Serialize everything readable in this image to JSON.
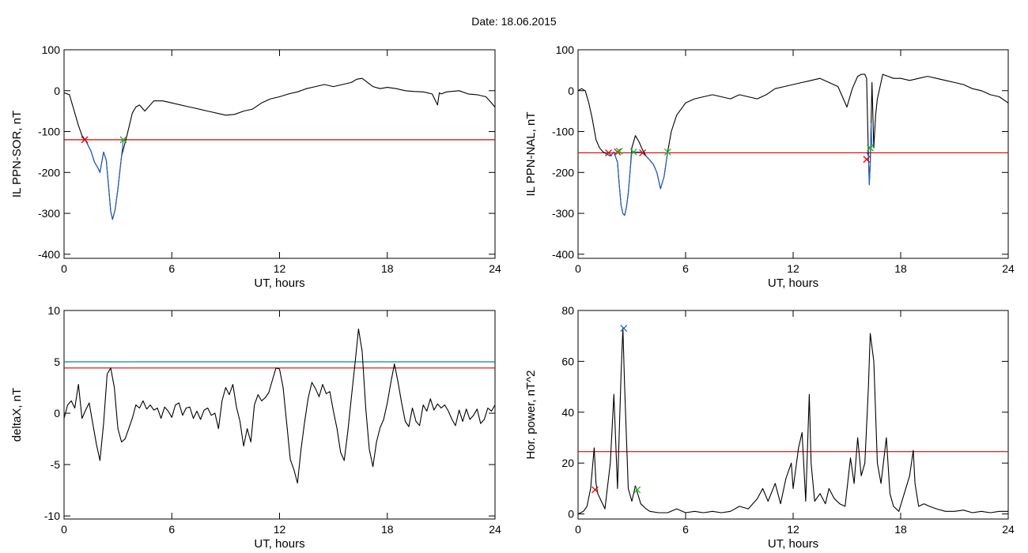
{
  "title": "Date:  18.06.2015",
  "chart_data": [
    {
      "id": "panel-sor",
      "type": "line",
      "xlabel": "UT, hours",
      "ylabel": "IL PPN-SOR, nT",
      "xlim": [
        0,
        24
      ],
      "ylim": [
        -410,
        100
      ],
      "xticks": [
        0,
        6,
        12,
        18,
        24
      ],
      "yticks": [
        -400,
        -300,
        -200,
        -100,
        0,
        100
      ],
      "series": [
        {
          "color": "#000000",
          "x": [
            0.0,
            0.3,
            0.5,
            0.8,
            1.0,
            1.2,
            1.5,
            1.7,
            1.9,
            2.0,
            2.1,
            2.2,
            2.35,
            2.5,
            2.6,
            2.7,
            2.85,
            3.0,
            3.2,
            3.5,
            3.8,
            4.0,
            4.2,
            4.5,
            5.0,
            5.5,
            6.0,
            7.0,
            8.0,
            9.0,
            9.5,
            10.0,
            10.5,
            11.0,
            11.5,
            12.0,
            12.5,
            13.0,
            13.5,
            14.0,
            14.5,
            15.0,
            15.5,
            16.0,
            16.3,
            16.6,
            16.9,
            17.2,
            17.6,
            18.0,
            18.5,
            19.0,
            19.5,
            20.0,
            20.5,
            20.8,
            20.9,
            21.0,
            21.3,
            22.0,
            22.5,
            23.0,
            23.5,
            24.0
          ],
          "y": [
            -5,
            -10,
            -40,
            -85,
            -110,
            -122,
            -148,
            -175,
            -190,
            -200,
            -175,
            -150,
            -170,
            -245,
            -295,
            -315,
            -290,
            -240,
            -160,
            -110,
            -55,
            -40,
            -35,
            -50,
            -25,
            -25,
            -30,
            -40,
            -50,
            -60,
            -58,
            -50,
            -45,
            -30,
            -20,
            -15,
            -8,
            -3,
            5,
            10,
            15,
            10,
            15,
            20,
            28,
            30,
            20,
            10,
            5,
            8,
            5,
            0,
            -2,
            -3,
            -8,
            -35,
            -5,
            -8,
            -3,
            0,
            -8,
            -10,
            -15,
            -40
          ]
        },
        {
          "color": "#1e5dc8",
          "x": [
            1.15,
            1.2,
            1.5,
            1.7,
            1.9,
            2.0,
            2.1,
            2.2,
            2.35,
            2.5,
            2.6,
            2.7,
            2.85,
            3.0,
            3.2,
            3.3
          ],
          "y": [
            -120,
            -122,
            -148,
            -175,
            -190,
            -200,
            -175,
            -150,
            -170,
            -245,
            -295,
            -315,
            -290,
            -240,
            -160,
            -120
          ]
        }
      ],
      "hlines": [
        {
          "y": -120,
          "color": "#e00000"
        }
      ],
      "markers": [
        {
          "x": 1.15,
          "y": -120,
          "color": "#e00000"
        },
        {
          "x": 3.3,
          "y": -120,
          "color": "#22b022"
        }
      ]
    },
    {
      "id": "panel-nal",
      "type": "line",
      "xlabel": "UT, hours",
      "ylabel": "IL PPN-NAL, nT",
      "xlim": [
        0,
        24
      ],
      "ylim": [
        -410,
        100
      ],
      "xticks": [
        0,
        6,
        12,
        18,
        24
      ],
      "yticks": [
        -400,
        -300,
        -200,
        -100,
        0,
        100
      ],
      "series": [
        {
          "color": "#000000",
          "x": [
            0.0,
            0.2,
            0.4,
            0.6,
            0.8,
            1.0,
            1.2,
            1.4,
            1.6,
            1.8,
            2.0,
            2.2,
            2.3,
            2.4,
            2.5,
            2.6,
            2.7,
            2.8,
            2.9,
            3.0,
            3.2,
            3.4,
            3.6,
            3.8,
            4.0,
            4.2,
            4.4,
            4.6,
            4.8,
            5.0,
            5.2,
            5.5,
            6.0,
            6.5,
            7.0,
            7.5,
            8.0,
            8.5,
            9.0,
            9.5,
            10.0,
            10.5,
            11.0,
            11.5,
            12.0,
            12.5,
            13.0,
            13.5,
            14.0,
            14.5,
            14.8,
            15.0,
            15.3,
            15.6,
            15.8,
            16.0,
            16.1,
            16.2,
            16.25,
            16.3,
            16.35,
            16.4,
            16.5,
            16.6,
            16.7,
            16.9,
            17.0,
            17.3,
            17.6,
            18.0,
            18.5,
            19.0,
            19.5,
            20.0,
            20.5,
            21.0,
            21.5,
            22.0,
            22.5,
            23.0,
            23.5,
            24.0
          ],
          "y": [
            0,
            5,
            0,
            -30,
            -70,
            -120,
            -140,
            -150,
            -155,
            -160,
            -150,
            -175,
            -230,
            -280,
            -300,
            -305,
            -285,
            -250,
            -200,
            -140,
            -110,
            -125,
            -145,
            -160,
            -170,
            -180,
            -200,
            -240,
            -210,
            -150,
            -100,
            -60,
            -30,
            -20,
            -15,
            -10,
            -15,
            -20,
            -10,
            -15,
            -20,
            -10,
            5,
            10,
            15,
            20,
            25,
            30,
            20,
            10,
            -20,
            -40,
            5,
            35,
            40,
            40,
            30,
            -160,
            -230,
            -180,
            -80,
            20,
            -140,
            -60,
            -20,
            20,
            40,
            35,
            30,
            30,
            25,
            30,
            35,
            30,
            25,
            20,
            15,
            5,
            0,
            -10,
            -15,
            -30
          ]
        },
        {
          "color": "#1e5dc8",
          "x": [
            1.5,
            1.6,
            1.8,
            2.0,
            2.2,
            2.3,
            2.4,
            2.5,
            2.6,
            2.7,
            2.8,
            2.9,
            3.0,
            3.2,
            3.4,
            3.6,
            3.8,
            4.0,
            4.2,
            4.4,
            4.6,
            4.8,
            5.0
          ],
          "y": [
            -150,
            -155,
            -160,
            -150,
            -175,
            -230,
            -280,
            -300,
            -305,
            -285,
            -250,
            -200,
            -150,
            -150,
            -150,
            -152,
            -160,
            -170,
            -180,
            -200,
            -240,
            -210,
            -150
          ]
        },
        {
          "color": "#1e5dc8",
          "x": [
            16.1,
            16.2,
            16.25,
            16.3,
            16.35,
            16.4
          ],
          "y": [
            -150,
            -160,
            -230,
            -180,
            -80,
            -140
          ]
        }
      ],
      "hlines": [
        {
          "y": -152,
          "color": "#e00000"
        }
      ],
      "markers": [
        {
          "x": 1.7,
          "y": -152,
          "color": "#e00000"
        },
        {
          "x": 2.2,
          "y": -150,
          "color": "#e00000"
        },
        {
          "x": 2.3,
          "y": -148,
          "color": "#22b022"
        },
        {
          "x": 3.1,
          "y": -150,
          "color": "#22b022"
        },
        {
          "x": 3.6,
          "y": -152,
          "color": "#e00000"
        },
        {
          "x": 5.0,
          "y": -150,
          "color": "#22b022"
        },
        {
          "x": 16.1,
          "y": -168,
          "color": "#e00000"
        },
        {
          "x": 16.3,
          "y": -140,
          "color": "#22b022"
        }
      ]
    },
    {
      "id": "panel-deltax",
      "type": "line",
      "xlabel": "UT, hours",
      "ylabel": "deltaX, nT",
      "xlim": [
        0,
        24
      ],
      "ylim": [
        -10.3,
        10
      ],
      "xticks": [
        0,
        6,
        12,
        18,
        24
      ],
      "yticks": [
        -10,
        -5,
        0,
        5,
        10
      ],
      "series": [
        {
          "color": "#000000",
          "x": [
            0.0,
            0.2,
            0.4,
            0.6,
            0.8,
            1.0,
            1.2,
            1.4,
            1.6,
            1.8,
            2.0,
            2.2,
            2.4,
            2.6,
            2.8,
            3.0,
            3.2,
            3.4,
            3.6,
            3.8,
            4.0,
            4.2,
            4.4,
            4.6,
            4.8,
            5.0,
            5.2,
            5.4,
            5.6,
            5.8,
            6.0,
            6.2,
            6.4,
            6.6,
            6.8,
            7.0,
            7.2,
            7.4,
            7.6,
            7.8,
            8.0,
            8.2,
            8.4,
            8.6,
            8.8,
            9.0,
            9.2,
            9.4,
            9.6,
            9.8,
            10.0,
            10.2,
            10.4,
            10.6,
            10.8,
            11.0,
            11.2,
            11.4,
            11.6,
            11.8,
            12.0,
            12.2,
            12.4,
            12.6,
            12.8,
            13.0,
            13.2,
            13.4,
            13.6,
            13.8,
            14.0,
            14.2,
            14.4,
            14.6,
            14.8,
            15.0,
            15.2,
            15.4,
            15.6,
            15.8,
            16.0,
            16.2,
            16.4,
            16.6,
            16.8,
            17.0,
            17.2,
            17.4,
            17.6,
            17.8,
            18.0,
            18.2,
            18.4,
            18.6,
            18.8,
            19.0,
            19.2,
            19.4,
            19.6,
            19.8,
            20.0,
            20.2,
            20.4,
            20.6,
            20.8,
            21.0,
            21.2,
            21.4,
            21.6,
            21.8,
            22.0,
            22.2,
            22.4,
            22.6,
            22.8,
            23.0,
            23.2,
            23.4,
            23.6,
            23.8,
            24.0
          ],
          "y": [
            -0.5,
            0.8,
            1.2,
            0.5,
            2.8,
            -0.5,
            0.3,
            1.0,
            -1.0,
            -3.0,
            -4.6,
            -1.0,
            3.8,
            4.4,
            2.5,
            -1.5,
            -2.8,
            -2.5,
            -1.5,
            -0.5,
            0.8,
            0.5,
            1.2,
            0.4,
            0.8,
            0.3,
            0.5,
            -0.5,
            0.6,
            0.2,
            -0.4,
            0.8,
            1.0,
            -0.2,
            0.5,
            0.6,
            -0.5,
            0.2,
            -0.6,
            0.3,
            0.5,
            -0.2,
            0.0,
            -1.5,
            1.2,
            2.5,
            1.8,
            2.8,
            0.6,
            -0.8,
            -3.2,
            -1.5,
            -2.8,
            0.8,
            1.8,
            1.2,
            1.5,
            2.0,
            3.2,
            4.4,
            4.3,
            2.5,
            -1.0,
            -4.5,
            -5.5,
            -6.8,
            -3.5,
            -0.8,
            1.5,
            3.0,
            2.4,
            1.6,
            2.8,
            1.9,
            2.1,
            0.2,
            -1.5,
            -3.8,
            -4.6,
            -1.8,
            1.5,
            4.8,
            8.2,
            6.0,
            0.5,
            -3.5,
            -5.2,
            -2.8,
            -1.4,
            -0.6,
            1.0,
            3.0,
            4.8,
            3.0,
            1.0,
            -0.8,
            -1.3,
            0.5,
            -0.8,
            -1.2,
            0.8,
            0.2,
            1.4,
            0.3,
            0.9,
            0.5,
            0.8,
            0.2,
            -0.6,
            -1.2,
            0.3,
            -0.8,
            0.4,
            -0.6,
            -0.2,
            0.4,
            -1.0,
            -0.6,
            0.5,
            0.2,
            0.8
          ]
        }
      ],
      "hlines": [
        {
          "y": 5.0,
          "color": "#008c8c"
        },
        {
          "y": 4.4,
          "color": "#e00000"
        }
      ],
      "markers": []
    },
    {
      "id": "panel-power",
      "type": "line",
      "xlabel": "UT, hours",
      "ylabel": "Hor. power, nT^2",
      "xlim": [
        0,
        24
      ],
      "ylim": [
        -2,
        80
      ],
      "xticks": [
        0,
        6,
        12,
        18,
        24
      ],
      "yticks": [
        0,
        20,
        40,
        60,
        80
      ],
      "series": [
        {
          "color": "#000000",
          "x": [
            0.0,
            0.3,
            0.5,
            0.7,
            0.9,
            1.0,
            1.1,
            1.3,
            1.5,
            1.8,
            2.0,
            2.2,
            2.4,
            2.5,
            2.6,
            2.8,
            3.0,
            3.2,
            3.5,
            3.8,
            4.0,
            4.5,
            5.0,
            5.5,
            6.0,
            6.5,
            7.0,
            7.5,
            8.0,
            8.5,
            9.0,
            9.5,
            10.0,
            10.3,
            10.6,
            11.0,
            11.3,
            11.6,
            11.9,
            12.0,
            12.3,
            12.5,
            12.7,
            12.9,
            13.0,
            13.2,
            13.5,
            13.8,
            14.0,
            14.3,
            14.6,
            14.9,
            15.2,
            15.4,
            15.6,
            15.8,
            16.0,
            16.2,
            16.3,
            16.5,
            16.7,
            16.9,
            17.2,
            17.4,
            17.6,
            17.9,
            18.2,
            18.5,
            18.7,
            18.8,
            19.0,
            19.3,
            19.6,
            20.0,
            20.5,
            21.0,
            21.5,
            22.0,
            22.5,
            23.0,
            23.5,
            24.0
          ],
          "y": [
            0,
            1,
            3,
            10,
            26,
            12,
            8,
            5,
            2,
            20,
            47,
            10,
            55,
            73,
            50,
            10,
            5,
            11,
            4,
            2,
            1,
            0.5,
            0.5,
            2,
            0.5,
            1,
            0.5,
            1,
            0.5,
            1,
            3,
            2,
            6,
            10,
            5,
            12,
            4,
            14,
            20,
            10,
            26,
            32,
            5,
            47,
            20,
            5,
            8,
            4,
            10,
            6,
            4,
            3,
            22,
            12,
            30,
            15,
            20,
            50,
            71,
            60,
            20,
            12,
            30,
            8,
            3,
            1,
            8,
            15,
            25,
            12,
            3,
            4,
            3,
            2,
            1,
            1,
            1.5,
            0.5,
            1,
            0.5,
            1,
            1
          ]
        }
      ],
      "hlines": [
        {
          "y": 24.5,
          "color": "#e00000"
        }
      ],
      "markers": [
        {
          "x": 2.55,
          "y": 73,
          "color": "#1e5dc8"
        },
        {
          "x": 0.95,
          "y": 9.5,
          "color": "#e00000"
        },
        {
          "x": 3.3,
          "y": 9.5,
          "color": "#22b022"
        }
      ]
    }
  ]
}
